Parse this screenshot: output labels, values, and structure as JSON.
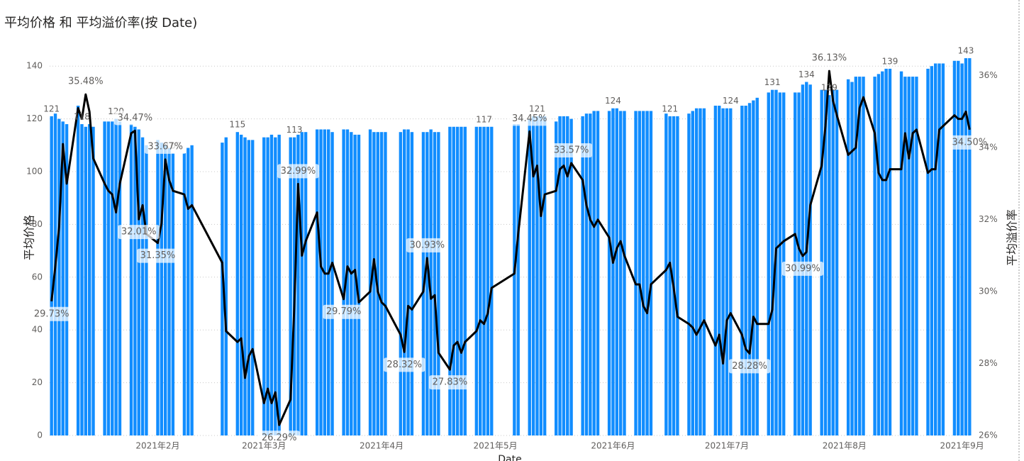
{
  "chart_data": {
    "type": "combo",
    "title": "平均价格 和 平均溢价率(按 Date)",
    "xlabel": "Date",
    "grid": true,
    "connect_gaps": true,
    "categories": [
      null,
      null,
      null,
      null,
      null,
      null,
      null,
      null,
      null,
      null,
      null,
      null,
      null,
      null,
      null,
      null,
      null,
      null,
      null,
      null,
      null,
      null,
      null,
      null,
      null,
      null,
      null,
      null,
      "2021年2月",
      null,
      null,
      null,
      null,
      null,
      null,
      null,
      null,
      null,
      null,
      null,
      null,
      null,
      null,
      null,
      null,
      null,
      null,
      null,
      null,
      null,
      null,
      null,
      null,
      null,
      null,
      null,
      "2021年3月",
      null,
      null,
      null,
      null,
      null,
      null,
      null,
      null,
      null,
      null,
      null,
      null,
      null,
      null,
      null,
      null,
      null,
      null,
      null,
      null,
      null,
      null,
      null,
      null,
      null,
      null,
      null,
      null,
      null,
      null,
      "2021年4月",
      null,
      null,
      null,
      null,
      null,
      null,
      null,
      null,
      null,
      null,
      null,
      null,
      null,
      null,
      null,
      null,
      null,
      null,
      null,
      null,
      null,
      null,
      null,
      null,
      null,
      null,
      null,
      null,
      null,
      "2021年5月",
      null,
      null,
      null,
      null,
      null,
      null,
      null,
      null,
      null,
      null,
      null,
      null,
      null,
      null,
      null,
      null,
      null,
      null,
      null,
      null,
      null,
      null,
      null,
      null,
      null,
      null,
      null,
      null,
      null,
      null,
      "2021年6月",
      null,
      null,
      null,
      null,
      null,
      null,
      null,
      null,
      null,
      null,
      null,
      null,
      null,
      null,
      null,
      null,
      null,
      null,
      null,
      null,
      null,
      null,
      null,
      null,
      null,
      null,
      null,
      null,
      null,
      "2021年7月",
      null,
      null,
      null,
      null,
      null,
      null,
      null,
      null,
      null,
      null,
      null,
      null,
      null,
      null,
      null,
      null,
      null,
      null,
      null,
      null,
      null,
      null,
      null,
      null,
      null,
      null,
      null,
      null,
      null,
      null,
      "2021年8月",
      null,
      null,
      null,
      null,
      null,
      null,
      null,
      null,
      null,
      null,
      null,
      null,
      null,
      null,
      null,
      null,
      null,
      null,
      null,
      null,
      null,
      null,
      null,
      null,
      null,
      null,
      null,
      null,
      null,
      null,
      "2021年9月",
      null,
      null
    ],
    "ylim": [
      0,
      150
    ],
    "yticks": [
      0,
      20,
      40,
      60,
      80,
      100,
      120,
      140
    ],
    "y2lim": [
      26,
      37
    ],
    "y2ticks": [
      {
        "value": 26,
        "label": "26%"
      },
      {
        "value": 28,
        "label": "28%"
      },
      {
        "value": 30,
        "label": "30%"
      },
      {
        "value": 32,
        "label": "32%"
      },
      {
        "value": 34,
        "label": "34%"
      },
      {
        "value": 36,
        "label": "36%"
      }
    ],
    "series": [
      {
        "name": "平均价格",
        "type": "bar",
        "color": "#118dff",
        "values": [
          121,
          122,
          120,
          119,
          118,
          null,
          null,
          125,
          118,
          117,
          118,
          117,
          null,
          null,
          119,
          119,
          119,
          120,
          119,
          null,
          null,
          118,
          117,
          116,
          113,
          110,
          null,
          null,
          112,
          111,
          110,
          109,
          107,
          null,
          null,
          107,
          109,
          110,
          null,
          null,
          null,
          null,
          null,
          null,
          null,
          111,
          113,
          null,
          null,
          115,
          114,
          113,
          112,
          112,
          null,
          null,
          113,
          113,
          114,
          113,
          114,
          null,
          null,
          113,
          113,
          114,
          115,
          115,
          null,
          null,
          116,
          116,
          116,
          116,
          115,
          null,
          null,
          116,
          116,
          115,
          114,
          114,
          null,
          null,
          116,
          115,
          115,
          115,
          115,
          null,
          null,
          null,
          115,
          116,
          116,
          115,
          null,
          null,
          115,
          115,
          116,
          115,
          115,
          null,
          null,
          117,
          117,
          117,
          117,
          117,
          null,
          null,
          117,
          117,
          117,
          117,
          117,
          null,
          null,
          null,
          null,
          null,
          118,
          118,
          null,
          null,
          120,
          121,
          121,
          121,
          121,
          null,
          null,
          119,
          121,
          121,
          121,
          120,
          null,
          null,
          121,
          122,
          122,
          123,
          123,
          null,
          null,
          123,
          124,
          124,
          123,
          123,
          null,
          null,
          123,
          123,
          123,
          123,
          123,
          null,
          null,
          null,
          122,
          121,
          121,
          121,
          null,
          null,
          122,
          123,
          124,
          124,
          124,
          null,
          null,
          125,
          125,
          124,
          124,
          124,
          null,
          null,
          125,
          125,
          126,
          127,
          128,
          null,
          null,
          130,
          131,
          131,
          130,
          130,
          null,
          null,
          130,
          130,
          133,
          134,
          133,
          null,
          null,
          131,
          131,
          129,
          131,
          131,
          null,
          null,
          135,
          134,
          136,
          136,
          136,
          null,
          null,
          136,
          137,
          138,
          139,
          139,
          null,
          null,
          138,
          136,
          136,
          136,
          136,
          null,
          null,
          139,
          140,
          141,
          141,
          141,
          null,
          null,
          142,
          142,
          141,
          143,
          143
        ],
        "value_labels": [
          "121",
          null,
          null,
          null,
          null,
          null,
          null,
          null,
          "118",
          null,
          null,
          null,
          null,
          null,
          null,
          null,
          null,
          "120",
          null,
          null,
          null,
          null,
          null,
          null,
          null,
          null,
          null,
          null,
          null,
          null,
          null,
          null,
          "107",
          null,
          null,
          null,
          null,
          null,
          null,
          null,
          null,
          null,
          null,
          null,
          null,
          null,
          null,
          null,
          null,
          "115",
          null,
          null,
          null,
          null,
          null,
          null,
          null,
          null,
          null,
          null,
          null,
          null,
          null,
          null,
          "113",
          null,
          null,
          null,
          null,
          null,
          null,
          null,
          null,
          null,
          null,
          null,
          null,
          null,
          null,
          null,
          null,
          null,
          null,
          null,
          null,
          null,
          null,
          null,
          null,
          null,
          null,
          null,
          null,
          null,
          null,
          null,
          null,
          null,
          null,
          null,
          null,
          null,
          null,
          null,
          null,
          null,
          null,
          null,
          null,
          null,
          null,
          null,
          null,
          null,
          "117",
          null,
          null,
          null,
          null,
          null,
          null,
          null,
          null,
          null,
          null,
          null,
          null,
          null,
          "121",
          null,
          null,
          null,
          null,
          null,
          null,
          null,
          null,
          null,
          null,
          null,
          null,
          null,
          null,
          null,
          null,
          null,
          null,
          null,
          "124",
          null,
          null,
          null,
          null,
          null,
          null,
          null,
          null,
          null,
          null,
          null,
          null,
          null,
          null,
          "121",
          null,
          null,
          null,
          null,
          null,
          null,
          null,
          null,
          null,
          null,
          null,
          null,
          null,
          null,
          null,
          "124",
          null,
          null,
          null,
          null,
          null,
          null,
          null,
          null,
          null,
          null,
          "131",
          null,
          null,
          null,
          null,
          null,
          null,
          null,
          null,
          "134",
          null,
          null,
          null,
          null,
          null,
          "129",
          null,
          null,
          null,
          null,
          null,
          null,
          null,
          null,
          null,
          null,
          null,
          null,
          null,
          null,
          null,
          "139",
          null,
          null,
          null,
          null,
          null,
          null,
          null,
          null,
          null,
          null,
          null,
          null,
          null,
          null,
          null,
          null,
          null,
          null,
          null,
          "143",
          null
        ]
      },
      {
        "name": "平均溢价率",
        "type": "line",
        "axis": "y2",
        "color": "#000000",
        "values": [
          29.73,
          30.7,
          31.8,
          34.1,
          33.0,
          null,
          null,
          35.1,
          34.8,
          35.48,
          35.0,
          33.7,
          null,
          null,
          33.0,
          32.8,
          32.7,
          32.2,
          33.0,
          null,
          null,
          34.4,
          34.47,
          32.01,
          32.4,
          31.6,
          null,
          null,
          31.35,
          31.9,
          33.67,
          33.1,
          32.8,
          null,
          null,
          32.7,
          32.3,
          32.4,
          null,
          null,
          null,
          null,
          null,
          null,
          null,
          30.8,
          28.9,
          null,
          null,
          28.6,
          28.7,
          27.6,
          28.2,
          28.4,
          null,
          null,
          26.9,
          27.3,
          26.9,
          27.2,
          26.29,
          null,
          null,
          27.0,
          29.6,
          32.99,
          31.0,
          31.4,
          null,
          null,
          32.2,
          30.7,
          30.5,
          30.5,
          30.8,
          null,
          null,
          29.79,
          30.7,
          30.5,
          30.6,
          29.7,
          null,
          null,
          30.0,
          30.9,
          30.0,
          29.7,
          29.6,
          null,
          null,
          null,
          28.8,
          28.32,
          29.6,
          29.5,
          null,
          null,
          30.0,
          30.93,
          29.8,
          29.9,
          28.3,
          null,
          null,
          27.83,
          28.5,
          28.6,
          28.3,
          28.6,
          null,
          null,
          28.9,
          29.2,
          29.1,
          29.4,
          30.1,
          null,
          null,
          null,
          null,
          null,
          30.5,
          31.6,
          null,
          null,
          34.45,
          33.2,
          33.5,
          32.1,
          32.7,
          null,
          null,
          32.8,
          33.4,
          33.5,
          33.2,
          33.57,
          null,
          null,
          33.1,
          32.4,
          32.0,
          31.8,
          32.0,
          null,
          null,
          31.5,
          30.8,
          31.2,
          31.4,
          31.0,
          null,
          null,
          30.2,
          30.2,
          29.6,
          29.4,
          30.2,
          null,
          null,
          null,
          30.6,
          30.8,
          30.1,
          29.3,
          null,
          null,
          29.1,
          29.0,
          28.8,
          29.0,
          29.2,
          null,
          null,
          28.5,
          28.8,
          28.0,
          29.2,
          29.4,
          null,
          null,
          28.8,
          28.4,
          28.28,
          29.3,
          29.1,
          null,
          null,
          29.1,
          29.5,
          31.2,
          31.3,
          31.4,
          null,
          null,
          31.6,
          31.2,
          30.99,
          31.1,
          32.4,
          null,
          null,
          33.5,
          34.6,
          36.13,
          35.3,
          34.9,
          null,
          null,
          33.8,
          33.9,
          34.0,
          35.1,
          35.4,
          null,
          null,
          34.4,
          33.3,
          33.1,
          33.1,
          33.4,
          null,
          null,
          33.4,
          34.4,
          33.7,
          34.4,
          34.5,
          null,
          null,
          33.3,
          33.4,
          33.4,
          34.5,
          34.6,
          null,
          null,
          34.9,
          34.8,
          34.8,
          35.0,
          34.5
        ],
        "value_labels": [
          "29.73%",
          null,
          null,
          null,
          null,
          null,
          null,
          null,
          null,
          "35.48%",
          null,
          null,
          null,
          null,
          null,
          null,
          null,
          null,
          null,
          null,
          null,
          null,
          "34.47%",
          "32.01%",
          null,
          null,
          null,
          null,
          "31.35%",
          null,
          "33.67%",
          null,
          null,
          null,
          null,
          null,
          null,
          null,
          null,
          null,
          null,
          null,
          null,
          null,
          null,
          null,
          null,
          null,
          null,
          null,
          null,
          null,
          null,
          null,
          null,
          null,
          null,
          null,
          null,
          null,
          "26.29%",
          null,
          null,
          null,
          null,
          "32.99%",
          null,
          null,
          null,
          null,
          null,
          null,
          null,
          null,
          null,
          null,
          null,
          "29.79%",
          null,
          null,
          null,
          null,
          null,
          null,
          null,
          null,
          null,
          null,
          null,
          null,
          null,
          null,
          null,
          "28.32%",
          null,
          null,
          null,
          null,
          null,
          "30.93%",
          null,
          null,
          null,
          null,
          null,
          "27.83%",
          null,
          null,
          null,
          null,
          null,
          null,
          null,
          null,
          null,
          null,
          null,
          null,
          null,
          null,
          null,
          null,
          null,
          null,
          null,
          null,
          "34.45%",
          null,
          null,
          null,
          null,
          null,
          null,
          null,
          null,
          null,
          null,
          "33.57%",
          null,
          null,
          null,
          null,
          null,
          null,
          null,
          null,
          null,
          null,
          null,
          null,
          null,
          null,
          null,
          null,
          null,
          null,
          null,
          null,
          null,
          null,
          null,
          null,
          null,
          null,
          null,
          null,
          null,
          null,
          null,
          null,
          null,
          null,
          null,
          null,
          null,
          null,
          null,
          null,
          null,
          null,
          null,
          null,
          null,
          null,
          "28.28%",
          null,
          null,
          null,
          null,
          null,
          null,
          null,
          null,
          null,
          null,
          null,
          null,
          null,
          "30.99%",
          null,
          null,
          null,
          null,
          null,
          null,
          "36.13%",
          null,
          null,
          null,
          null,
          null,
          null,
          null,
          null,
          null,
          null,
          null,
          null,
          null,
          null,
          null,
          null,
          null,
          null,
          null,
          null,
          null,
          null,
          null,
          null,
          null,
          null,
          null,
          null,
          null,
          null,
          null,
          null,
          null,
          null,
          null,
          null,
          "34.50%"
        ]
      }
    ]
  }
}
